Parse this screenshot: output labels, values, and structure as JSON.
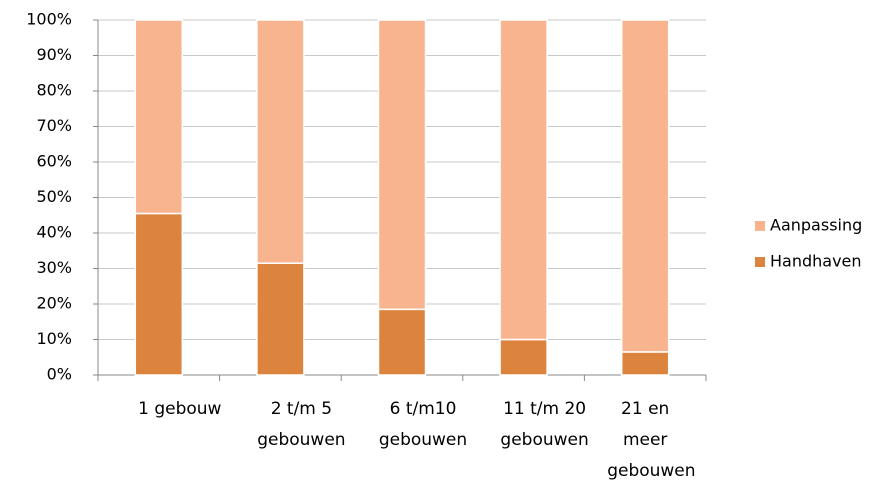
{
  "chart_data": {
    "type": "stacked_bar",
    "categories": [
      "1 gebouw",
      "2 t/m 5 gebouwen",
      "6 t/m10 gebouwen",
      "11 t/m 20 gebouwen",
      "21 en meer gebouwen"
    ],
    "series": [
      {
        "name": "Handhaven",
        "color": "#dc843e",
        "values": [
          45.5,
          31.5,
          18.5,
          10,
          6.5
        ]
      },
      {
        "name": "Aanpassing",
        "color": "#f8b38f",
        "values": [
          54.5,
          68.5,
          81.5,
          90,
          93.5
        ]
      }
    ],
    "ylim": [
      0,
      100
    ],
    "yticks": [
      {
        "value": 0,
        "label": "0%"
      },
      {
        "value": 10,
        "label": "10%"
      },
      {
        "value": 20,
        "label": "20%"
      },
      {
        "value": 30,
        "label": "30%"
      },
      {
        "value": 40,
        "label": "40%"
      },
      {
        "value": 50,
        "label": "50%"
      },
      {
        "value": 60,
        "label": "60%"
      },
      {
        "value": 70,
        "label": "70%"
      },
      {
        "value": 80,
        "label": "80%"
      },
      {
        "value": 90,
        "label": "90%"
      },
      {
        "value": 100,
        "label": "100%"
      }
    ],
    "grid": true,
    "legend": "right"
  }
}
